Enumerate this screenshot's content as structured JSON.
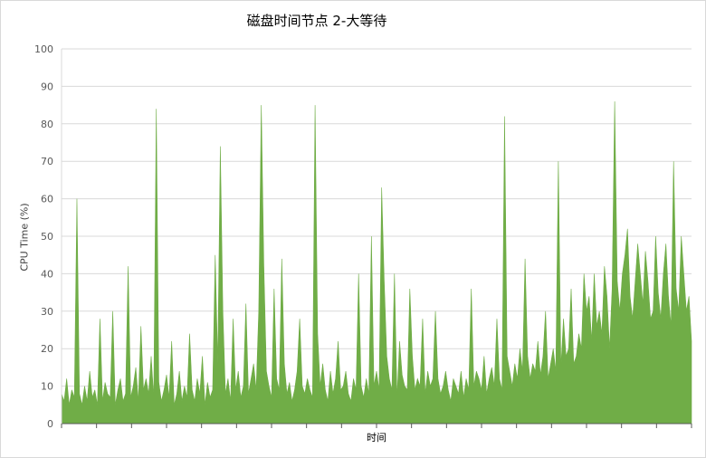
{
  "chart_data": {
    "type": "area",
    "title": "磁盘时间节点 2-大等待",
    "xlabel": "时间",
    "ylabel": "CPU Time (%)",
    "ylim": [
      0,
      100
    ],
    "yticks": [
      0,
      10,
      20,
      30,
      40,
      50,
      60,
      70,
      80,
      90,
      100
    ],
    "grid": true,
    "legend": "none",
    "color": "#70ad47",
    "series": [
      {
        "values": [
          8,
          6,
          12,
          5,
          9,
          7,
          60,
          8,
          5,
          10,
          6,
          14,
          7,
          9,
          5,
          28,
          6,
          11,
          8,
          7,
          30,
          5,
          9,
          12,
          6,
          8,
          42,
          7,
          10,
          15,
          6,
          26,
          9,
          12,
          8,
          18,
          7,
          84,
          11,
          6,
          9,
          13,
          7,
          22,
          5,
          8,
          14,
          6,
          10,
          7,
          24,
          9,
          6,
          12,
          8,
          18,
          5,
          11,
          7,
          9,
          45,
          16,
          74,
          30,
          8,
          12,
          6,
          28,
          9,
          14,
          7,
          10,
          32,
          8,
          12,
          16,
          9,
          30,
          85,
          42,
          14,
          10,
          7,
          36,
          12,
          9,
          44,
          16,
          8,
          11,
          6,
          9,
          14,
          28,
          10,
          8,
          12,
          9,
          7,
          85,
          24,
          10,
          16,
          9,
          6,
          14,
          8,
          12,
          22,
          9,
          10,
          14,
          8,
          6,
          12,
          9,
          40,
          10,
          7,
          12,
          8,
          50,
          10,
          14,
          9,
          63,
          38,
          18,
          12,
          9,
          40,
          7,
          22,
          13,
          10,
          9,
          36,
          18,
          9,
          12,
          10,
          28,
          8,
          14,
          10,
          12,
          30,
          12,
          8,
          10,
          14,
          9,
          6,
          12,
          10,
          8,
          14,
          7,
          12,
          9,
          36,
          10,
          14,
          12,
          9,
          18,
          8,
          12,
          15,
          10,
          28,
          12,
          9,
          82,
          18,
          14,
          10,
          16,
          12,
          20,
          14,
          44,
          18,
          12,
          16,
          14,
          22,
          13,
          18,
          30,
          12,
          16,
          20,
          14,
          70,
          15,
          28,
          18,
          20,
          36,
          16,
          18,
          24,
          20,
          40,
          30,
          34,
          22,
          40,
          26,
          30,
          24,
          42,
          34,
          20,
          36,
          86,
          38,
          30,
          40,
          45,
          52,
          34,
          28,
          38,
          48,
          40,
          32,
          46,
          38,
          28,
          30,
          50,
          35,
          28,
          40,
          48,
          34,
          26,
          70,
          36,
          30,
          50,
          40,
          30,
          34,
          22
        ]
      }
    ]
  }
}
